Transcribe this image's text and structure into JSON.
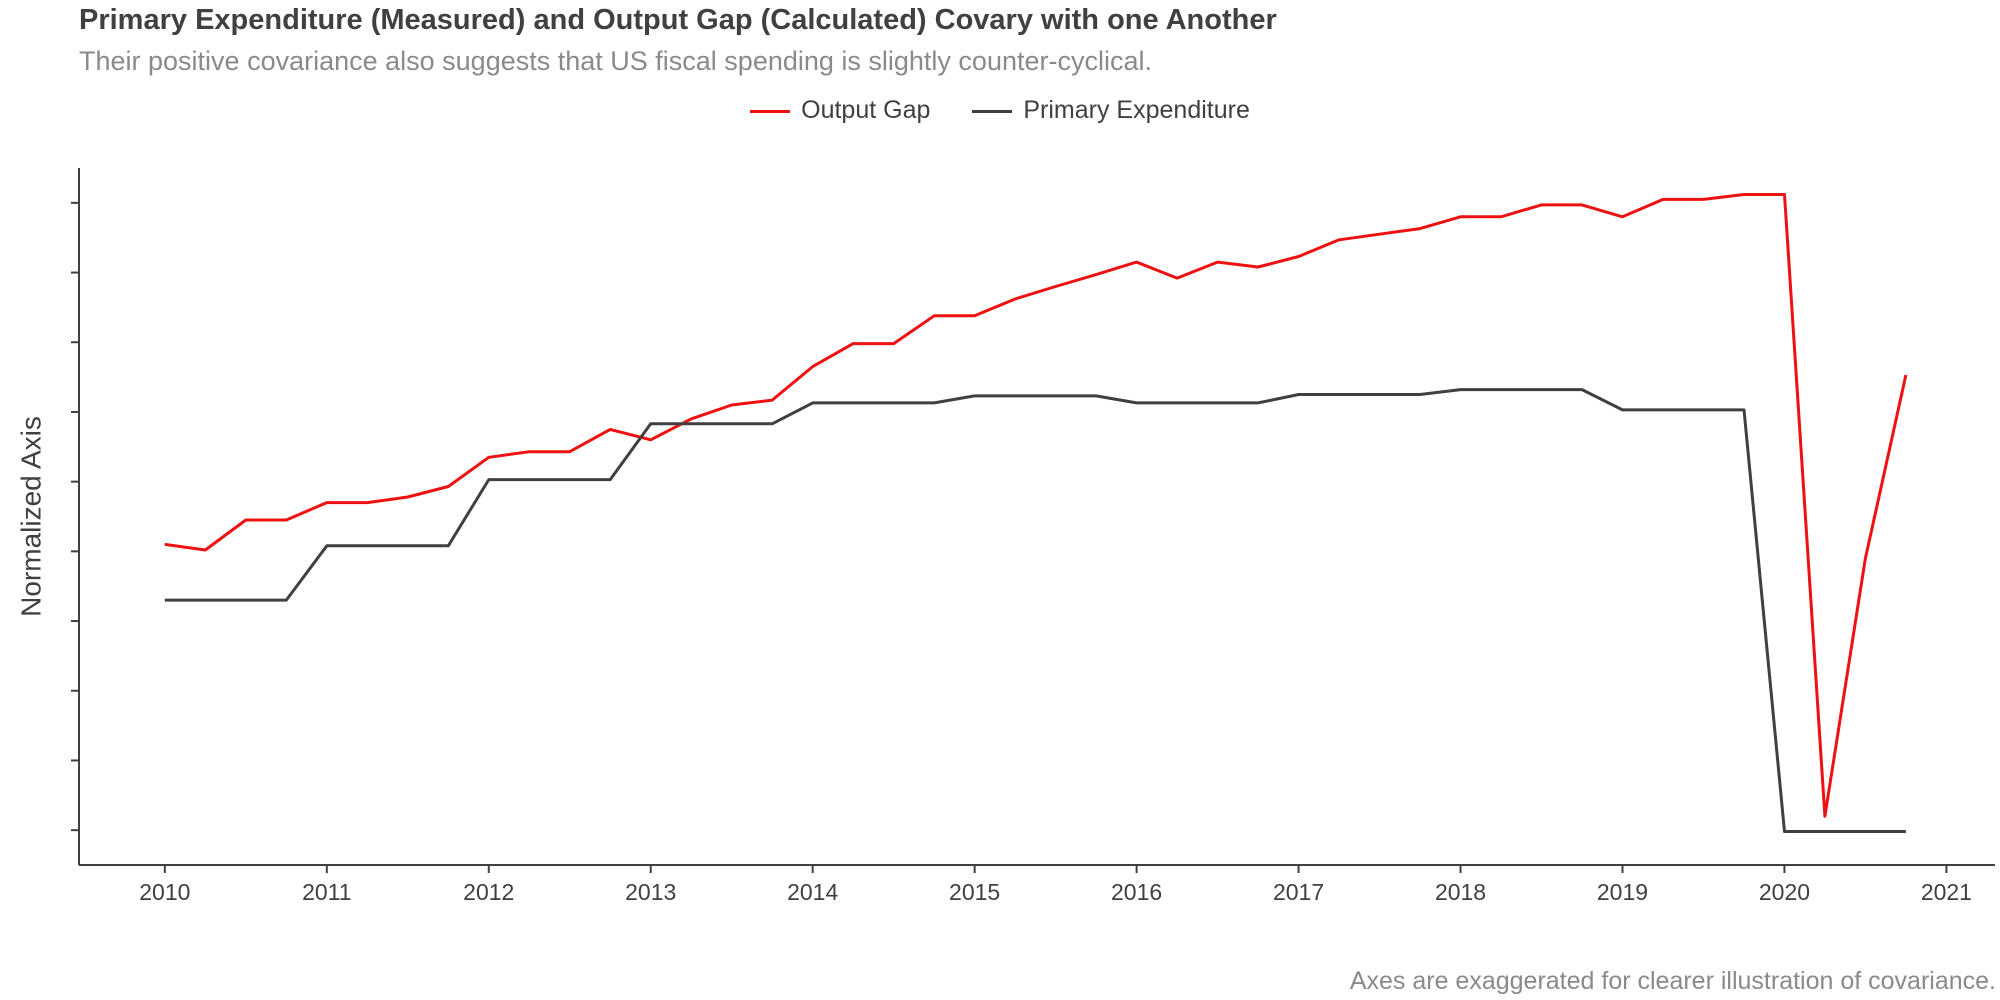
{
  "chart_data": {
    "type": "line",
    "title": "Primary Expenditure (Measured) and Output Gap (Calculated) Covary with one Another",
    "subtitle": "Their positive covariance also suggests that US fiscal spending is slightly counter-cyclical.",
    "caption": "Axes are exaggerated for clearer illustration of covariance.",
    "xlabel": "",
    "ylabel": "Normalized Axis",
    "xlim": [
      2009.47,
      2021.3
    ],
    "ylim": [
      -0.5,
      9.5
    ],
    "x_ticks": [
      "2010",
      "2011",
      "2012",
      "2013",
      "2014",
      "2015",
      "2016",
      "2017",
      "2018",
      "2019",
      "2020",
      "2021"
    ],
    "y_tick_values": [
      0,
      1,
      2,
      3,
      4,
      5,
      6,
      7,
      8,
      9
    ],
    "grid": false,
    "legend_position": "top-center",
    "x": [
      2010.0,
      2010.25,
      2010.5,
      2010.75,
      2011.0,
      2011.25,
      2011.5,
      2011.75,
      2012.0,
      2012.25,
      2012.5,
      2012.75,
      2013.0,
      2013.25,
      2013.5,
      2013.75,
      2014.0,
      2014.25,
      2014.5,
      2014.75,
      2015.0,
      2015.25,
      2015.5,
      2015.75,
      2016.0,
      2016.25,
      2016.5,
      2016.75,
      2017.0,
      2017.25,
      2017.5,
      2017.75,
      2018.0,
      2018.25,
      2018.5,
      2018.75,
      2019.0,
      2019.25,
      2019.5,
      2019.75,
      2020.0,
      2020.25,
      2020.5,
      2020.75
    ],
    "series": [
      {
        "name": "Output Gap",
        "color": "#ee1111",
        "values": [
          4.1,
          4.02,
          4.45,
          4.45,
          4.7,
          4.7,
          4.78,
          4.93,
          5.35,
          5.43,
          5.43,
          5.75,
          5.6,
          5.9,
          6.1,
          6.17,
          6.65,
          6.98,
          6.98,
          7.38,
          7.38,
          7.62,
          7.8,
          7.97,
          8.15,
          7.92,
          8.15,
          8.08,
          8.23,
          8.47,
          8.55,
          8.63,
          8.8,
          8.8,
          8.97,
          8.97,
          8.8,
          9.05,
          9.05,
          9.12,
          9.12,
          0.2,
          3.9,
          6.53
        ]
      },
      {
        "name": "Primary Expenditure",
        "color": "#404040",
        "values": [
          3.3,
          3.3,
          3.3,
          3.3,
          4.08,
          4.08,
          4.08,
          4.08,
          5.03,
          5.03,
          5.03,
          5.03,
          5.83,
          5.83,
          5.83,
          5.83,
          6.13,
          6.13,
          6.13,
          6.13,
          6.23,
          6.23,
          6.23,
          6.23,
          6.13,
          6.13,
          6.13,
          6.13,
          6.25,
          6.25,
          6.25,
          6.25,
          6.32,
          6.32,
          6.32,
          6.32,
          6.03,
          6.03,
          6.03,
          6.03,
          -0.02,
          -0.02,
          -0.02,
          -0.02
        ]
      }
    ]
  }
}
